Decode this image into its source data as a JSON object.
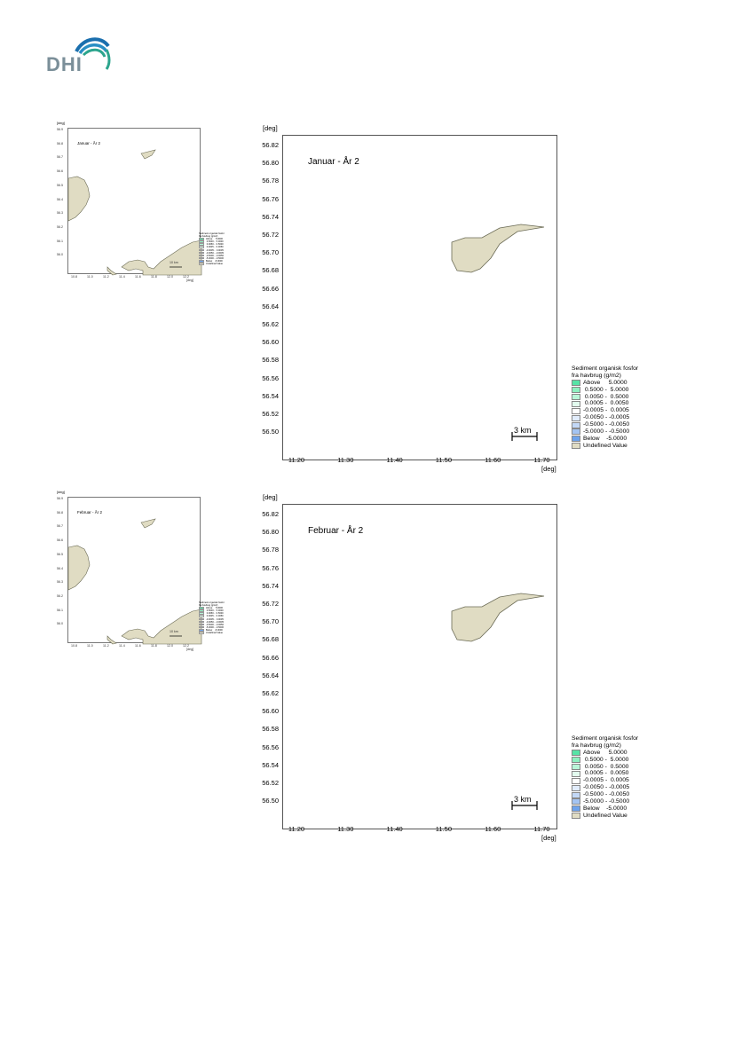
{
  "logo": {
    "text": "DHI"
  },
  "units": {
    "deg": "[deg]",
    "mini_deg": "[deg]"
  },
  "panels": [
    {
      "title": "Januar - År 2",
      "mini_title": "Januar - År 2",
      "scale_label": "3 km",
      "mini_scale_label": "10 km"
    },
    {
      "title": "Februar - År 2",
      "mini_title": "Februar - År 2",
      "scale_label": "3 km",
      "mini_scale_label": "10 km"
    }
  ],
  "map": {
    "y_ticks": [
      "56.82",
      "56.80",
      "56.78",
      "56.76",
      "56.74",
      "56.72",
      "56.70",
      "56.68",
      "56.66",
      "56.64",
      "56.62",
      "56.60",
      "56.58",
      "56.56",
      "56.54",
      "56.52",
      "56.50"
    ],
    "x_ticks": [
      "11.20",
      "11.30",
      "11.40",
      "11.50",
      "11.60",
      "11.70"
    ],
    "mini_y_ticks": [
      "56.9",
      "56.8",
      "56.7",
      "56.6",
      "56.5",
      "56.4",
      "56.3",
      "56.2",
      "56.1",
      "56.0"
    ],
    "mini_x_ticks": [
      "10.8",
      "11.0",
      "11.2",
      "11.4",
      "11.6",
      "11.8",
      "12.0",
      "12.2"
    ]
  },
  "legend": {
    "title_line1": "Sediment organisk fosfor",
    "title_line2": "fra havbrug (g/m2)",
    "items": [
      {
        "label": "Above     5.0000",
        "color": "#57e3a6"
      },
      {
        "label": " 0.5000 -  5.0000",
        "color": "#8ef0c0"
      },
      {
        "label": " 0.0050 -  0.5000",
        "color": "#b9f6d8"
      },
      {
        "label": " 0.0005 -  0.0050",
        "color": "#e2fbee"
      },
      {
        "label": "-0.0005 -  0.0005",
        "color": "#ffffff"
      },
      {
        "label": "-0.0050 - -0.0005",
        "color": "#e1ecfb"
      },
      {
        "label": "-0.5000 - -0.0050",
        "color": "#c3d8f6"
      },
      {
        "label": "-5.0000 - -0.5000",
        "color": "#a4c4f2"
      },
      {
        "label": "Below    -5.0000",
        "color": "#6ea3ec"
      },
      {
        "label": "Undefined Value",
        "color": "#e0dcc3"
      }
    ]
  },
  "colors": {
    "land": "#e0dcc3",
    "land_stroke": "#6b6b55",
    "logo_blue": "#1a6fae",
    "logo_green": "#2ca58d",
    "logo_text": "#7b8f99"
  }
}
